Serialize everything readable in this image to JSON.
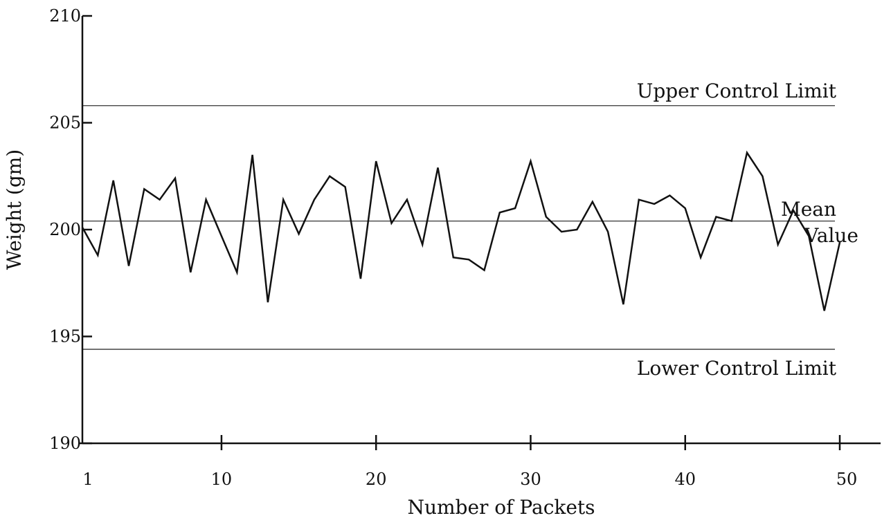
{
  "chart_data": {
    "type": "line",
    "title": "",
    "xlabel": "Number of Packets",
    "ylabel": "Weight  (gm)",
    "xlim": [
      1,
      50
    ],
    "ylim": [
      190,
      210
    ],
    "x_tick_values": [
      1,
      10,
      20,
      30,
      40,
      50
    ],
    "x_tick_labels": [
      "1",
      "10",
      "20",
      "30",
      "40",
      "50"
    ],
    "y_tick_values": [
      190,
      195,
      200,
      205,
      210
    ],
    "y_tick_labels": [
      "190",
      "195",
      "200",
      "205",
      "210"
    ],
    "grid": false,
    "reference_lines": [
      {
        "label": "Upper Control Limit",
        "value": 205.8
      },
      {
        "label_line1": "Mean",
        "label_line2": "Value",
        "value": 200.4
      },
      {
        "label": "Lower Control Limit",
        "value": 194.4
      }
    ],
    "series": [
      {
        "x": [
          1,
          2,
          3,
          4,
          5,
          6,
          7,
          8,
          9,
          10,
          11,
          12,
          13,
          14,
          15,
          16,
          17,
          18,
          19,
          20,
          21,
          22,
          23,
          24,
          25,
          26,
          27,
          28,
          29,
          30,
          31,
          32,
          33,
          34,
          35,
          36,
          37,
          38,
          39,
          40,
          41,
          42,
          43,
          44,
          45,
          46,
          47,
          48,
          49,
          50
        ],
        "values": [
          200.1,
          198.8,
          202.3,
          198.3,
          201.9,
          201.4,
          202.4,
          198.0,
          201.4,
          199.7,
          198.0,
          203.5,
          196.6,
          201.4,
          199.8,
          201.4,
          202.5,
          202.0,
          197.7,
          203.2,
          200.3,
          201.4,
          199.3,
          202.9,
          198.7,
          198.6,
          198.1,
          200.8,
          201.0,
          203.2,
          200.6,
          199.9,
          200.0,
          201.3,
          199.9,
          196.5,
          201.4,
          201.2,
          201.6,
          201.0,
          198.7,
          200.6,
          200.4,
          203.6,
          202.5,
          199.3,
          200.9,
          199.7,
          196.2,
          199.4
        ]
      }
    ]
  }
}
